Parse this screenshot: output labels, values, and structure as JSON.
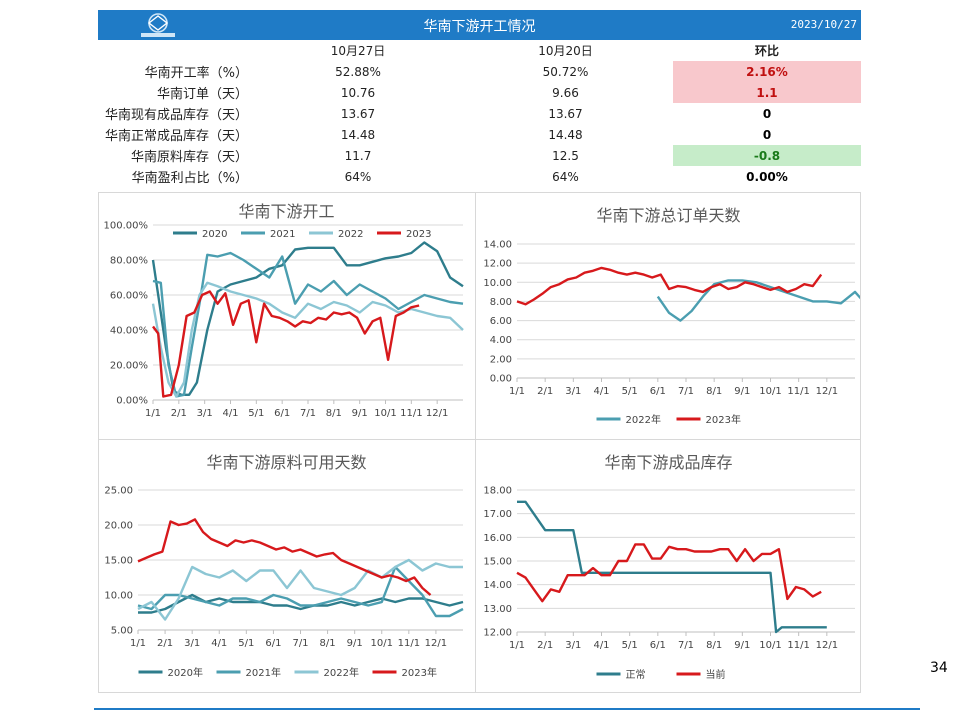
{
  "header": {
    "title": "华南下游开工情况",
    "date": "2023/10/27",
    "logo": "logo-icon"
  },
  "table": {
    "columns": [
      "",
      "10月27日",
      "10月20日",
      "环比"
    ],
    "rows": [
      {
        "label": "华南开工率（%）",
        "v1": "52.88%",
        "v2": "50.72%",
        "chg": "2.16%",
        "tone": "pos"
      },
      {
        "label": "华南订单（天）",
        "v1": "10.76",
        "v2": "9.66",
        "chg": "1.1",
        "tone": "pos"
      },
      {
        "label": "华南现有成品库存（天）",
        "v1": "13.67",
        "v2": "13.67",
        "chg": "0",
        "tone": "zero"
      },
      {
        "label": "华南正常成品库存（天）",
        "v1": "14.48",
        "v2": "14.48",
        "chg": "0",
        "tone": "zero"
      },
      {
        "label": "华南原料库存（天）",
        "v1": "11.7",
        "v2": "12.5",
        "chg": "-0.8",
        "tone": "neg"
      },
      {
        "label": "华南盈利占比（%）",
        "v1": "64%",
        "v2": "64%",
        "chg": "0.00%",
        "tone": "zero"
      }
    ]
  },
  "colors": {
    "header_bg": "#1f7bc6",
    "red": "#d7191c",
    "c2020": "#2e7d8c",
    "c2021": "#4b9eb0",
    "c2022": "#8cc6d4",
    "pos_bg": "#f8c8cc",
    "neg_bg": "#c6ecc9"
  },
  "page_number": "34",
  "chart_data": [
    {
      "type": "line",
      "title": "华南下游开工",
      "ylim": [
        0,
        100
      ],
      "yticks": [
        "0.00%",
        "20.00%",
        "40.00%",
        "60.00%",
        "80.00%",
        "100.00%"
      ],
      "xticks": [
        "1/1",
        "2/1",
        "3/1",
        "4/1",
        "5/1",
        "6/1",
        "7/1",
        "8/1",
        "9/1",
        "10/1",
        "11/1",
        "12/1"
      ],
      "legend": "top",
      "series": [
        {
          "name": "2020",
          "color": "#2e7d8c",
          "x": [
            0,
            0.2,
            0.5,
            0.8,
            1.1,
            1.4,
            1.7,
            2.1,
            2.5,
            3.0,
            3.5,
            4.0,
            4.5,
            5.0,
            5.5,
            6.0,
            6.5,
            7.0,
            7.5,
            8.0,
            8.5,
            9.0,
            9.5,
            10.0,
            10.5,
            11.0,
            11.5,
            12.0
          ],
          "values": [
            80,
            60,
            30,
            5,
            3,
            3,
            10,
            40,
            62,
            66,
            68,
            70,
            75,
            77,
            86,
            87,
            87,
            87,
            77,
            77,
            79,
            81,
            82,
            84,
            90,
            85,
            70,
            65
          ]
        },
        {
          "name": "2021",
          "color": "#4b9eb0",
          "x": [
            0,
            0.3,
            0.6,
            0.9,
            1.2,
            1.5,
            1.8,
            2.1,
            2.5,
            3.0,
            3.5,
            4.0,
            4.5,
            5.0,
            5.5,
            6.0,
            6.5,
            7.0,
            7.5,
            8.0,
            8.5,
            9.0,
            9.5,
            10.0,
            10.5,
            11.0,
            11.5,
            12.0
          ],
          "values": [
            68,
            67,
            20,
            2,
            3,
            30,
            55,
            83,
            82,
            84,
            80,
            75,
            70,
            82,
            55,
            66,
            62,
            68,
            60,
            66,
            62,
            58,
            52,
            56,
            60,
            58,
            56,
            55
          ]
        },
        {
          "name": "2022",
          "color": "#8cc6d4",
          "x": [
            0,
            0.3,
            0.6,
            0.9,
            1.2,
            1.5,
            1.8,
            2.1,
            2.5,
            3.0,
            3.5,
            4.0,
            4.5,
            5.0,
            5.5,
            6.0,
            6.5,
            7.0,
            7.5,
            8.0,
            8.5,
            9.0,
            9.5,
            10.0,
            10.5,
            11.0,
            11.5,
            12.0
          ],
          "values": [
            55,
            30,
            10,
            2,
            10,
            40,
            60,
            67,
            65,
            62,
            60,
            58,
            55,
            50,
            47,
            55,
            52,
            56,
            54,
            50,
            56,
            54,
            50,
            52,
            50,
            48,
            47,
            40
          ]
        },
        {
          "name": "2023",
          "color": "#d7191c",
          "x": [
            0,
            0.2,
            0.4,
            0.7,
            1.0,
            1.3,
            1.6,
            1.9,
            2.2,
            2.5,
            2.8,
            3.1,
            3.4,
            3.7,
            4.0,
            4.3,
            4.6,
            4.9,
            5.2,
            5.5,
            5.8,
            6.1,
            6.4,
            6.7,
            7.0,
            7.3,
            7.6,
            7.9,
            8.2,
            8.5,
            8.8,
            9.1,
            9.4,
            9.7,
            10.0,
            10.3
          ],
          "values": [
            42,
            38,
            2,
            3,
            20,
            48,
            50,
            60,
            62,
            55,
            61,
            43,
            55,
            57,
            33,
            55,
            48,
            47,
            45,
            42,
            45,
            44,
            47,
            46,
            50,
            49,
            50,
            47,
            38,
            45,
            47,
            23,
            48,
            50,
            53,
            54
          ]
        }
      ]
    },
    {
      "type": "line",
      "title": "华南下游总订单天数",
      "ylim": [
        0,
        14
      ],
      "yticks": [
        "0.00",
        "2.00",
        "4.00",
        "6.00",
        "8.00",
        "10.00",
        "12.00",
        "14.00"
      ],
      "xticks": [
        "1/1",
        "2/1",
        "3/1",
        "4/1",
        "5/1",
        "6/1",
        "7/1",
        "8/1",
        "9/1",
        "10/1",
        "11/1",
        "12/1"
      ],
      "legend": "bottom",
      "series": [
        {
          "name": "2022年",
          "color": "#4b9eb0",
          "x": [
            5.0,
            5.4,
            5.8,
            6.2,
            6.6,
            7.0,
            7.5,
            8.0,
            8.5,
            9.0,
            9.5,
            10.0,
            10.5,
            11.0,
            11.5,
            12.0,
            12.3
          ],
          "values": [
            8.5,
            6.8,
            6.0,
            7.0,
            8.5,
            9.8,
            10.2,
            10.2,
            10.0,
            9.5,
            9.0,
            8.5,
            8.0,
            8.0,
            7.8,
            9.0,
            8.0
          ]
        },
        {
          "name": "2023年",
          "color": "#d7191c",
          "x": [
            0,
            0.3,
            0.6,
            0.9,
            1.2,
            1.5,
            1.8,
            2.1,
            2.4,
            2.7,
            3.0,
            3.3,
            3.6,
            3.9,
            4.2,
            4.5,
            4.8,
            5.1,
            5.4,
            5.7,
            6.0,
            6.3,
            6.6,
            6.9,
            7.2,
            7.5,
            7.8,
            8.1,
            8.4,
            8.7,
            9.0,
            9.3,
            9.6,
            9.9,
            10.2,
            10.5,
            10.8
          ],
          "values": [
            8.0,
            7.7,
            8.2,
            8.8,
            9.5,
            9.8,
            10.3,
            10.5,
            11.0,
            11.2,
            11.5,
            11.3,
            11.0,
            10.8,
            11.0,
            10.8,
            10.5,
            10.8,
            9.3,
            9.6,
            9.5,
            9.2,
            9.0,
            9.5,
            9.8,
            9.3,
            9.5,
            10.0,
            9.8,
            9.5,
            9.2,
            9.5,
            9.0,
            9.3,
            9.8,
            9.6,
            10.8
          ]
        }
      ]
    },
    {
      "type": "line",
      "title": "华南下游原料可用天数",
      "ylim": [
        5,
        25
      ],
      "yticks": [
        "5.00",
        "10.00",
        "15.00",
        "20.00",
        "25.00"
      ],
      "xticks": [
        "1/1",
        "2/1",
        "3/1",
        "4/1",
        "5/1",
        "6/1",
        "7/1",
        "8/1",
        "9/1",
        "10/1",
        "11/1",
        "12/1"
      ],
      "legend": "bottom",
      "series": [
        {
          "name": "2020年",
          "color": "#2e7d8c",
          "x": [
            0,
            0.5,
            1.0,
            1.5,
            2.0,
            2.5,
            3.0,
            3.5,
            4.0,
            4.5,
            5.0,
            5.5,
            6.0,
            6.5,
            7.0,
            7.5,
            8.0,
            8.5,
            9.0,
            9.5,
            10.0,
            10.5,
            11.0,
            11.5,
            12.0
          ],
          "values": [
            7.5,
            7.5,
            8.0,
            9.0,
            10.0,
            9.0,
            9.5,
            9.0,
            9.0,
            9.0,
            8.5,
            8.5,
            8.0,
            8.5,
            8.5,
            9.0,
            8.5,
            9.0,
            9.5,
            9.0,
            9.5,
            9.5,
            9.0,
            8.5,
            9.0
          ]
        },
        {
          "name": "2021年",
          "color": "#4b9eb0",
          "x": [
            0,
            0.5,
            1.0,
            1.5,
            2.0,
            2.5,
            3.0,
            3.5,
            4.0,
            4.5,
            5.0,
            5.5,
            6.0,
            6.5,
            7.0,
            7.5,
            8.0,
            8.5,
            9.0,
            9.5,
            10.0,
            10.5,
            11.0,
            11.5,
            12.0
          ],
          "values": [
            8.5,
            8.0,
            10.0,
            10.0,
            9.5,
            9.0,
            8.5,
            9.5,
            9.5,
            9.0,
            10.0,
            9.5,
            8.5,
            8.5,
            9.0,
            9.5,
            9.0,
            8.5,
            9.0,
            14.0,
            12.0,
            10.0,
            7.0,
            7.0,
            8.0
          ]
        },
        {
          "name": "2022年",
          "color": "#8cc6d4",
          "x": [
            0,
            0.5,
            1.0,
            1.5,
            2.0,
            2.5,
            3.0,
            3.5,
            4.0,
            4.5,
            5.0,
            5.5,
            6.0,
            6.5,
            7.0,
            7.5,
            8.0,
            8.5,
            9.0,
            9.5,
            10.0,
            10.5,
            11.0,
            11.5,
            12.0
          ],
          "values": [
            8.0,
            9.0,
            6.5,
            9.5,
            14.0,
            13.0,
            12.5,
            13.5,
            12.0,
            13.5,
            13.5,
            11.0,
            13.5,
            11.0,
            10.5,
            10.0,
            11.0,
            13.5,
            12.5,
            14.0,
            15.0,
            13.5,
            14.5,
            14.0,
            14.0
          ]
        },
        {
          "name": "2023年",
          "color": "#d7191c",
          "x": [
            0,
            0.3,
            0.6,
            0.9,
            1.2,
            1.5,
            1.8,
            2.1,
            2.4,
            2.7,
            3.0,
            3.3,
            3.6,
            3.9,
            4.2,
            4.5,
            4.8,
            5.1,
            5.4,
            5.7,
            6.0,
            6.3,
            6.6,
            6.9,
            7.2,
            7.5,
            7.8,
            8.1,
            8.4,
            8.7,
            9.0,
            9.3,
            9.6,
            9.9,
            10.2,
            10.5,
            10.8
          ],
          "values": [
            14.8,
            15.3,
            15.8,
            16.2,
            20.5,
            20.0,
            20.2,
            20.8,
            19.0,
            18.0,
            17.5,
            17.0,
            17.8,
            17.5,
            17.8,
            17.5,
            17.0,
            16.5,
            16.8,
            16.2,
            16.5,
            16.0,
            15.5,
            15.8,
            16.0,
            15.0,
            14.5,
            14.0,
            13.5,
            13.0,
            12.5,
            12.8,
            12.5,
            12.0,
            12.5,
            11.0,
            10.0
          ]
        }
      ]
    },
    {
      "type": "line",
      "title": "华南下游成品库存",
      "ylim": [
        12,
        18
      ],
      "yticks": [
        "12.00",
        "13.00",
        "14.00",
        "15.00",
        "16.00",
        "17.00",
        "18.00"
      ],
      "xticks": [
        "1/1",
        "2/1",
        "3/1",
        "4/1",
        "5/1",
        "6/1",
        "7/1",
        "8/1",
        "9/1",
        "10/1",
        "11/1",
        "12/1"
      ],
      "legend": "bottom",
      "series": [
        {
          "name": "正常",
          "color": "#2e7d8c",
          "x": [
            0,
            0.3,
            1.0,
            1.5,
            2.0,
            2.3,
            3.0,
            4.0,
            5.0,
            6.0,
            7.0,
            8.0,
            9.0,
            9.2,
            9.4,
            9.6,
            10.0,
            10.5,
            11.0
          ],
          "values": [
            17.5,
            17.5,
            16.3,
            16.3,
            16.3,
            14.5,
            14.5,
            14.5,
            14.5,
            14.5,
            14.5,
            14.5,
            14.5,
            12.0,
            12.2,
            12.2,
            12.2,
            12.2,
            12.2
          ]
        },
        {
          "name": "当前",
          "color": "#d7191c",
          "x": [
            0,
            0.3,
            0.6,
            0.9,
            1.2,
            1.5,
            1.8,
            2.1,
            2.4,
            2.7,
            3.0,
            3.3,
            3.6,
            3.9,
            4.2,
            4.5,
            4.8,
            5.1,
            5.4,
            5.7,
            6.0,
            6.3,
            6.6,
            6.9,
            7.2,
            7.5,
            7.8,
            8.1,
            8.4,
            8.7,
            9.0,
            9.3,
            9.6,
            9.9,
            10.2,
            10.5,
            10.8
          ],
          "values": [
            14.5,
            14.3,
            13.8,
            13.3,
            13.8,
            13.7,
            14.4,
            14.4,
            14.4,
            14.7,
            14.4,
            14.4,
            15.0,
            15.0,
            15.7,
            15.7,
            15.1,
            15.1,
            15.6,
            15.5,
            15.5,
            15.4,
            15.4,
            15.4,
            15.5,
            15.5,
            15.0,
            15.5,
            15.0,
            15.3,
            15.3,
            15.5,
            13.4,
            13.9,
            13.8,
            13.5,
            13.7
          ]
        }
      ]
    }
  ]
}
